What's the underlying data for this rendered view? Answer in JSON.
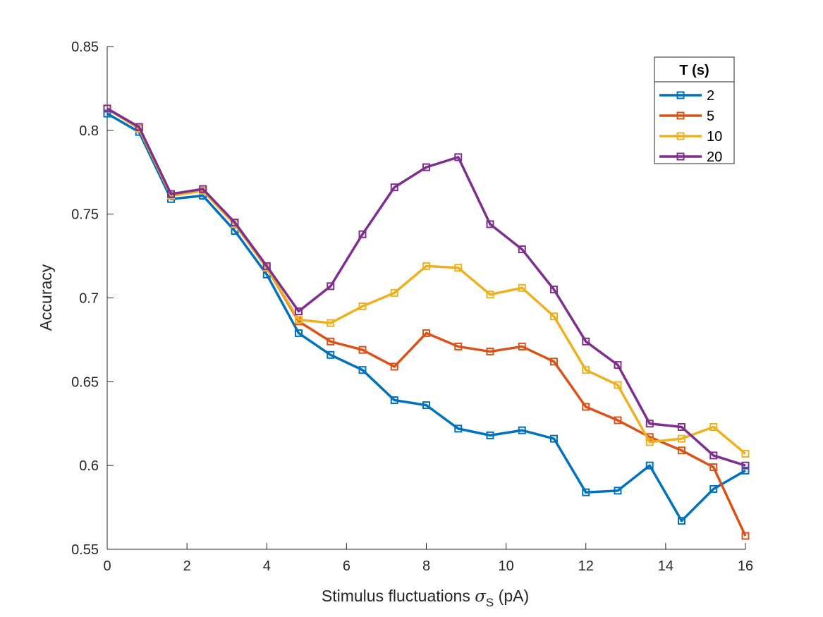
{
  "chart_data": {
    "type": "line",
    "xlabel_prefix": "Stimulus fluctuations ",
    "xlabel_symbol": "σ",
    "xlabel_subscript": "S",
    "xlabel_suffix": " (pA)",
    "ylabel": "Accuracy",
    "xlim": [
      0,
      16
    ],
    "ylim": [
      0.55,
      0.85
    ],
    "xticks": [
      0,
      2,
      4,
      6,
      8,
      10,
      12,
      14,
      16
    ],
    "yticks": [
      0.55,
      0.6,
      0.65,
      0.7,
      0.75,
      0.8,
      0.85
    ],
    "ytick_labels": [
      "0.55",
      "0.6",
      "0.65",
      "0.7",
      "0.75",
      "0.8",
      "0.85"
    ],
    "grid": false,
    "legend_title": "T (s)",
    "legend_position": "top-right",
    "x": [
      0,
      0.8,
      1.6,
      2.4,
      3.2,
      4.0,
      4.8,
      5.6,
      6.4,
      7.2,
      8.0,
      8.8,
      9.6,
      10.4,
      11.2,
      12.0,
      12.8,
      13.6,
      14.4,
      15.2,
      16.0
    ],
    "series": [
      {
        "name": "2",
        "color": "#0072BD",
        "values": [
          0.81,
          0.799,
          0.759,
          0.761,
          0.74,
          0.714,
          0.679,
          0.666,
          0.657,
          0.639,
          0.636,
          0.622,
          0.618,
          0.621,
          0.616,
          0.584,
          0.585,
          0.6,
          0.567,
          0.586,
          0.597
        ]
      },
      {
        "name": "5",
        "color": "#D95319",
        "values": [
          0.813,
          0.801,
          0.761,
          0.764,
          0.744,
          0.718,
          0.686,
          0.674,
          0.669,
          0.659,
          0.679,
          0.671,
          0.668,
          0.671,
          0.662,
          0.635,
          0.627,
          0.617,
          0.609,
          0.599,
          0.558
        ]
      },
      {
        "name": "10",
        "color": "#EDB120",
        "values": [
          0.813,
          0.801,
          0.761,
          0.764,
          0.744,
          0.718,
          0.687,
          0.685,
          0.695,
          0.703,
          0.719,
          0.718,
          0.702,
          0.706,
          0.689,
          0.657,
          0.648,
          0.614,
          0.616,
          0.623,
          0.607
        ]
      },
      {
        "name": "20",
        "color": "#7E2F8E",
        "values": [
          0.813,
          0.802,
          0.762,
          0.765,
          0.745,
          0.719,
          0.692,
          0.707,
          0.738,
          0.766,
          0.778,
          0.784,
          0.744,
          0.729,
          0.705,
          0.674,
          0.66,
          0.625,
          0.623,
          0.606,
          0.6
        ]
      }
    ]
  }
}
